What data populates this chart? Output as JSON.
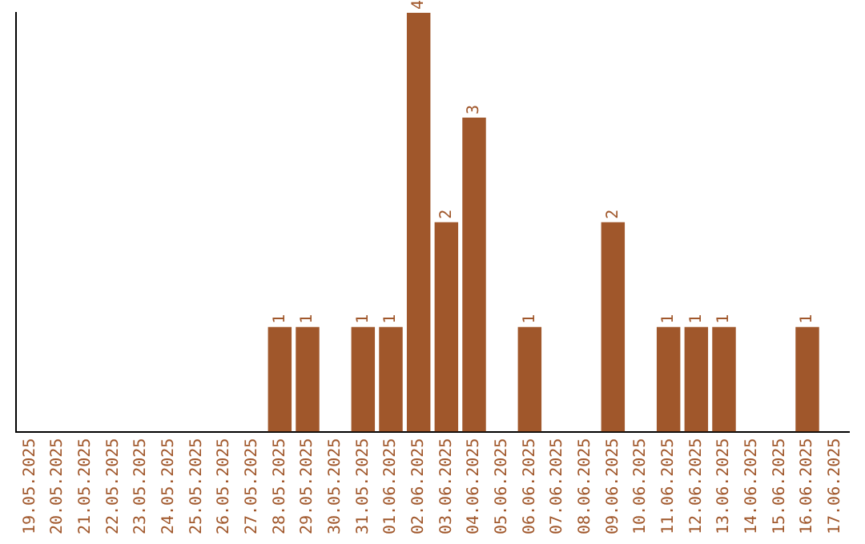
{
  "chart_data": {
    "type": "bar",
    "categories": [
      "19.05.2025",
      "20.05.2025",
      "21.05.2025",
      "22.05.2025",
      "23.05.2025",
      "24.05.2025",
      "25.05.2025",
      "26.05.2025",
      "27.05.2025",
      "28.05.2025",
      "29.05.2025",
      "30.05.2025",
      "31.05.2025",
      "01.06.2025",
      "02.06.2025",
      "03.06.2025",
      "04.06.2025",
      "05.06.2025",
      "06.06.2025",
      "07.06.2025",
      "08.06.2025",
      "09.06.2025",
      "10.06.2025",
      "11.06.2025",
      "12.06.2025",
      "13.06.2025",
      "14.06.2025",
      "15.06.2025",
      "16.06.2025",
      "17.06.2025"
    ],
    "values": [
      0,
      0,
      0,
      0,
      0,
      0,
      0,
      0,
      0,
      1,
      1,
      0,
      1,
      1,
      4,
      2,
      3,
      0,
      1,
      0,
      0,
      2,
      0,
      1,
      1,
      1,
      0,
      0,
      1,
      0
    ],
    "value_labels": [
      null,
      null,
      null,
      null,
      null,
      null,
      null,
      null,
      null,
      "1",
      "1",
      null,
      "1",
      "1",
      "4",
      "2",
      "3",
      null,
      "1",
      null,
      null,
      "2",
      null,
      "1",
      "1",
      "1",
      null,
      null,
      "1",
      null
    ],
    "color": "#a0572b"
  }
}
